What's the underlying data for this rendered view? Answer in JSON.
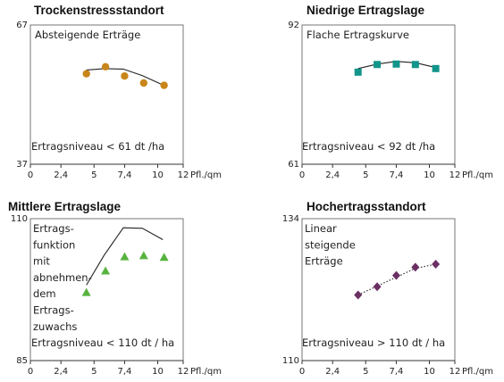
{
  "chart_data": [
    {
      "type": "scatter",
      "title": "Trockenstressstandort",
      "annotation": [
        "Absteigende  Erträge"
      ],
      "level_label": "Ertragsniveau < 61 dt /ha",
      "xlabel": "Pfl./qm",
      "xlim": [
        0,
        12
      ],
      "x_ticks": [
        "0",
        "2,4",
        "5",
        "7,4",
        "10",
        "12"
      ],
      "x_tick_values": [
        0,
        2.4,
        5,
        7.4,
        10,
        12
      ],
      "ylim": [
        37,
        67
      ],
      "y_ticks": [
        "67",
        "37"
      ],
      "marker": "circle",
      "marker_color": "#c8861a",
      "trend_line": "solid",
      "points": [
        [
          4.4,
          56.5
        ],
        [
          5.9,
          58
        ],
        [
          7.4,
          56
        ],
        [
          8.9,
          54.5
        ],
        [
          10.5,
          54
        ]
      ],
      "trend": [
        [
          4.4,
          57.3
        ],
        [
          5.8,
          57.6
        ],
        [
          7.3,
          57.5
        ],
        [
          8.8,
          56.1
        ],
        [
          10.4,
          54.1
        ]
      ]
    },
    {
      "type": "scatter",
      "title": "Niedrige Ertragslage",
      "annotation": [
        "Flache Ertragskurve"
      ],
      "level_label": "Ertragsniveau < 92 dt /ha",
      "xlabel": "Pfl./qm",
      "xlim": [
        0,
        12
      ],
      "x_ticks": [
        "0",
        "2,4",
        "5",
        "7,4",
        "10",
        "12"
      ],
      "x_tick_values": [
        0,
        2.4,
        5,
        7.4,
        10,
        12
      ],
      "ylim": [
        61,
        92
      ],
      "y_ticks": [
        "92",
        "61"
      ],
      "marker": "square",
      "marker_color": "#12958a",
      "trend_line": "solid",
      "points": [
        [
          4.4,
          81.5
        ],
        [
          5.9,
          83.2
        ],
        [
          7.4,
          83.3
        ],
        [
          8.9,
          83.2
        ],
        [
          10.5,
          82.3
        ]
      ],
      "trend": [
        [
          4.4,
          82.3
        ],
        [
          5.9,
          83.3
        ],
        [
          7.4,
          83.9
        ],
        [
          8.9,
          83.6
        ],
        [
          10.4,
          82.6
        ]
      ]
    },
    {
      "type": "scatter",
      "title": "Mittlere Ertragslage",
      "annotation": [
        "Ertrags-",
        "funktion",
        "mit",
        "abnehmen-",
        "dem",
        "Ertrags-",
        "zuwachs"
      ],
      "level_label": "Ertragsniveau < 110 dt / ha",
      "xlabel": "Pfl./qm",
      "xlim": [
        0,
        12
      ],
      "x_ticks": [
        "0",
        "2,4",
        "5",
        "7,4",
        "10",
        "12"
      ],
      "x_tick_values": [
        0,
        2.4,
        5,
        7.4,
        10,
        12
      ],
      "ylim": [
        85,
        110
      ],
      "y_ticks": [
        "110",
        "85"
      ],
      "marker": "triangle",
      "marker_color": "#57b33e",
      "trend_line": "solid",
      "points": [
        [
          4.4,
          97
        ],
        [
          5.9,
          100.8
        ],
        [
          7.4,
          103.3
        ],
        [
          8.9,
          103.5
        ],
        [
          10.5,
          103.2
        ]
      ],
      "trend": [
        [
          4.4,
          98.3
        ],
        [
          5.8,
          103.6
        ],
        [
          7.3,
          108.4
        ],
        [
          8.8,
          108.3
        ],
        [
          10.4,
          106.3
        ]
      ]
    },
    {
      "type": "scatter",
      "title": "Hochertragsstandort",
      "annotation": [
        "Linear",
        "steigende",
        "Erträge"
      ],
      "level_label": "Ertragsniveau > 110 dt / ha",
      "xlabel": "Pfl./qm",
      "xlim": [
        0,
        12
      ],
      "x_ticks": [
        "0",
        "2,4",
        "5",
        "7,4",
        "10",
        "12"
      ],
      "x_tick_values": [
        0,
        2.4,
        5,
        7.4,
        10,
        12
      ],
      "ylim": [
        110,
        134
      ],
      "y_ticks": [
        "134",
        "110"
      ],
      "marker": "diamond",
      "marker_color": "#6b2f63",
      "trend_line": "dotted",
      "points": [
        [
          4.4,
          121.1
        ],
        [
          5.9,
          122.5
        ],
        [
          7.4,
          124.4
        ],
        [
          8.9,
          125.8
        ],
        [
          10.5,
          126.3
        ]
      ],
      "trend": [
        [
          4.4,
          121.1
        ],
        [
          5.9,
          122.6
        ],
        [
          7.4,
          124.1
        ],
        [
          8.9,
          125.6
        ],
        [
          10.5,
          126.3
        ]
      ]
    }
  ]
}
